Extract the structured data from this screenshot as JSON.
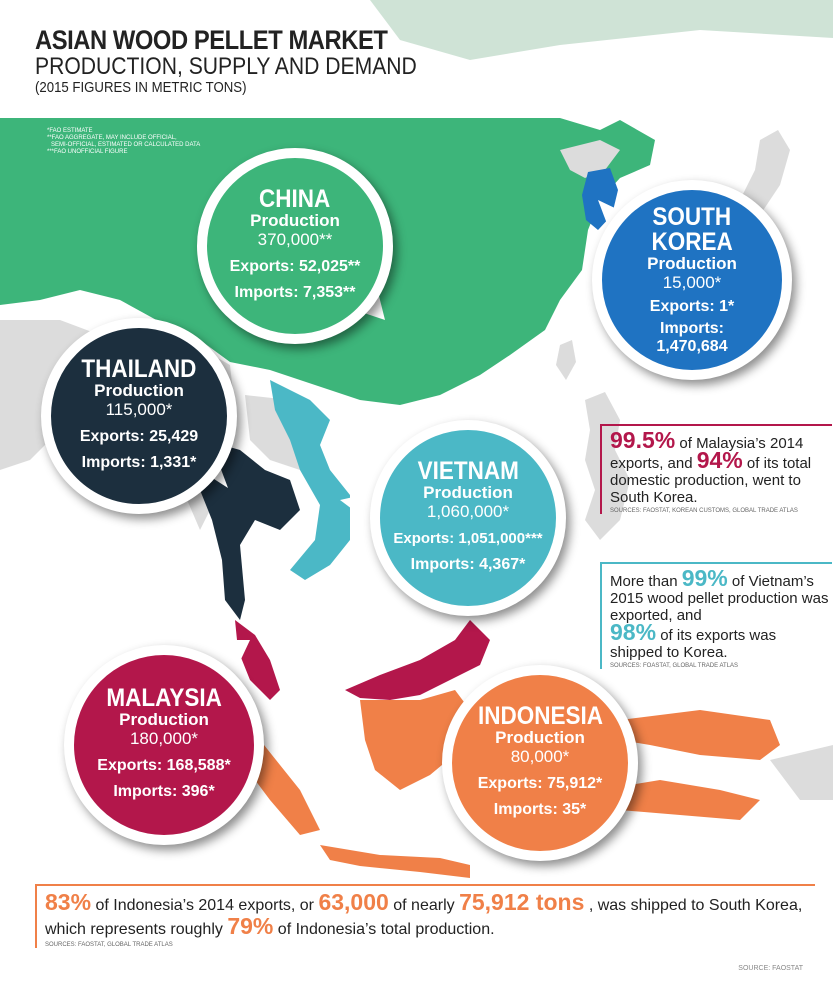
{
  "header": {
    "title": "ASIAN WOOD PELLET MARKET",
    "subtitle": "PRODUCTION, SUPPLY AND DEMAND",
    "note": "(2015 FIGURES IN METRIC TONS)"
  },
  "footnotes": {
    "fao_estimate": "*FAO ESTIMATE",
    "fao_aggregate_1": "**FAO AGGREGATE, MAY INCLUDE OFFICIAL,",
    "fao_aggregate_2": "SEMI-OFFICIAL, ESTIMATED OR CALCULATED DATA",
    "fao_unofficial": "***FAO UNOFFICIAL FIGURE"
  },
  "colors": {
    "china": "#3db57a",
    "korea": "#1f73c2",
    "thailand": "#1c2f3e",
    "vietnam": "#4bb8c6",
    "malaysia": "#b3174b",
    "indonesia": "#f08048",
    "other_land": "#dcdcdc"
  },
  "countries": {
    "china": {
      "name": "CHINA",
      "production_label": "Production",
      "production": "370,000**",
      "exports": "Exports: 52,025**",
      "imports": "Imports: 7,353**"
    },
    "south_korea": {
      "name_line1": "SOUTH",
      "name_line2": "KOREA",
      "production_label": "Production",
      "production": "15,000*",
      "exports": "Exports: 1*",
      "imports_label": "Imports:",
      "imports_value": "1,470,684"
    },
    "thailand": {
      "name": "THAILAND",
      "production_label": "Production",
      "production": "115,000*",
      "exports": "Exports: 25,429",
      "imports": "Imports: 1,331*"
    },
    "vietnam": {
      "name": "VIETNAM",
      "production_label": "Production",
      "production": "1,060,000*",
      "exports": "Exports: 1,051,000***",
      "imports": "Imports: 4,367*"
    },
    "malaysia": {
      "name": "MALAYSIA",
      "production_label": "Production",
      "production": "180,000*",
      "exports": "Exports: 168,588*",
      "imports": "Imports: 396*"
    },
    "indonesia": {
      "name": "INDONESIA",
      "production_label": "Production",
      "production": "80,000*",
      "exports": "Exports: 75,912*",
      "imports": "Imports: 35*"
    }
  },
  "facts": {
    "malaysia": {
      "pct1": "99.5%",
      "text1": " of Malaysia’s 2014 exports, and ",
      "pct2": "94%",
      "text2": " of its total domestic production, went to South Korea.",
      "source": "SOURCES: FAOSTAT, KOREAN CUSTOMS, GLOBAL TRADE ATLAS"
    },
    "vietnam": {
      "text0": "More than ",
      "pct1": "99%",
      "text1": " of Vietnam’s 2015 wood pellet production was exported, and",
      "pct2": "98%",
      "text2": " of its exports was shipped to Korea.",
      "source": "SOURCES: FOASTAT, GLOBAL TRADE ATLAS"
    },
    "indonesia": {
      "pct1": "83%",
      "text1": " of Indonesia’s 2014 exports, or ",
      "num1": "63,000",
      "text2": " of nearly ",
      "num2": "75,912 tons",
      "text3": " , was shipped to South Korea,",
      "text4": "which represents roughly ",
      "pct2": "79%",
      "text5": " of Indonesia’s total production.",
      "source": "SOURCES: FAOSTAT, GLOBAL TRADE ATLAS"
    }
  },
  "source_footer": "SOURCE: FAOSTAT"
}
